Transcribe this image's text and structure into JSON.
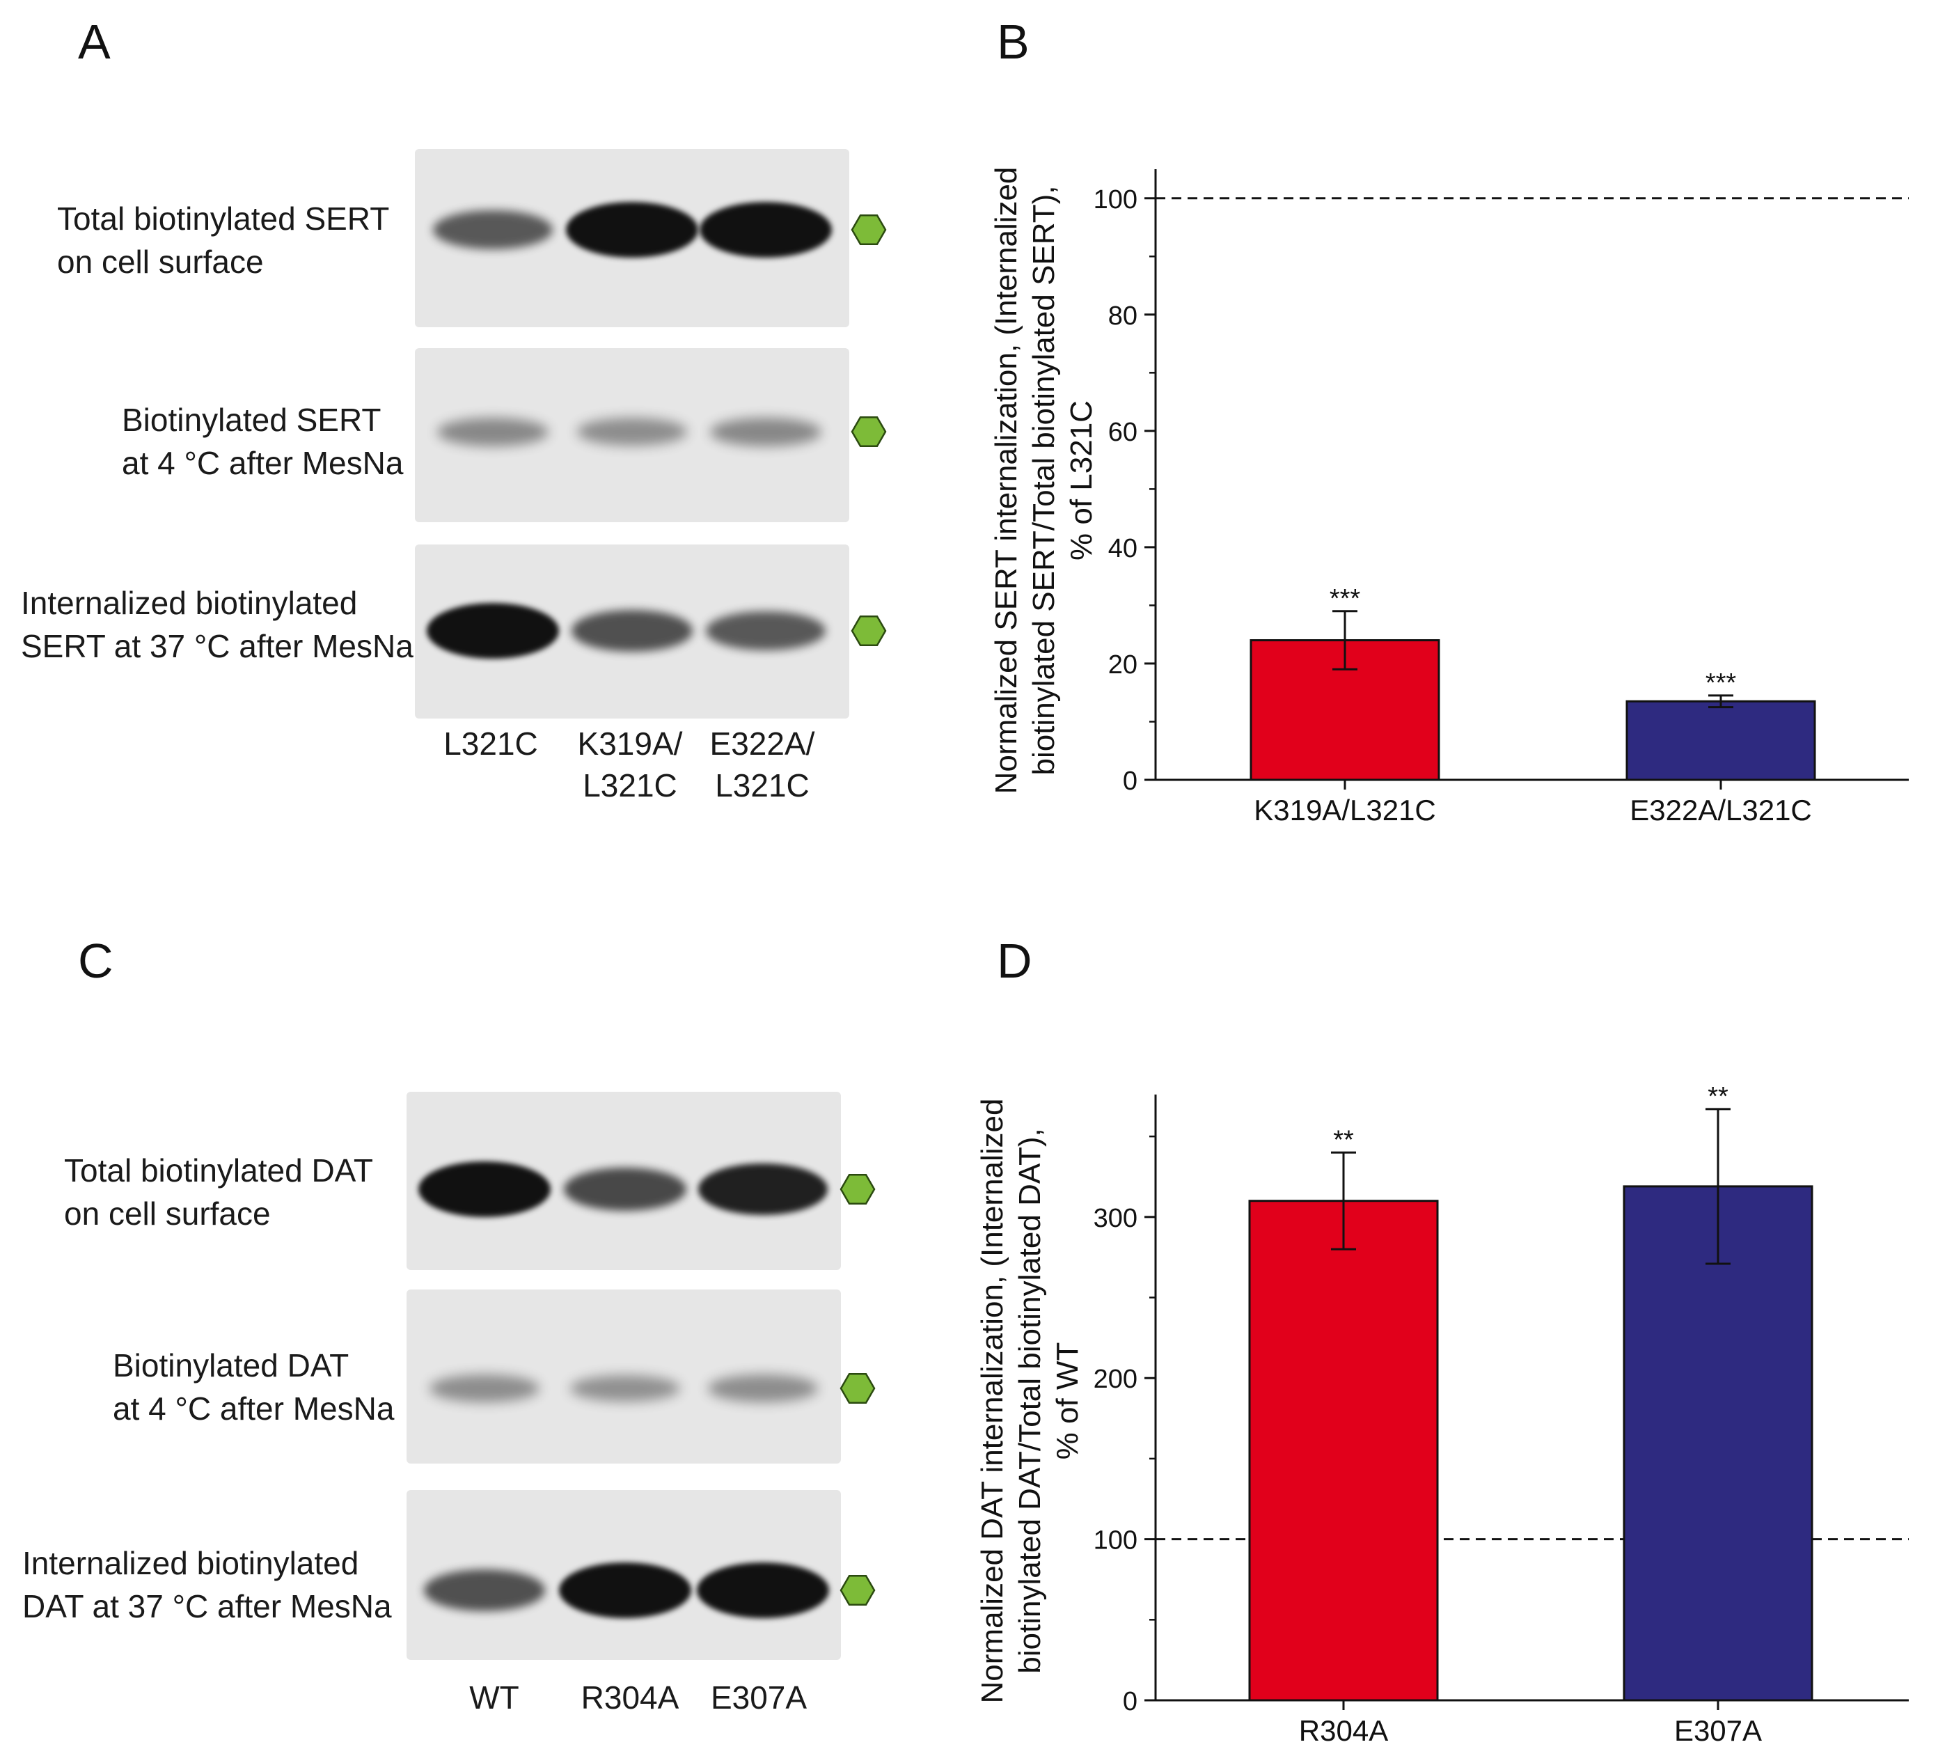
{
  "panels": {
    "A": {
      "letter": "A"
    },
    "B": {
      "letter": "B"
    },
    "C": {
      "letter": "C"
    },
    "D": {
      "letter": "D"
    }
  },
  "blot_A": {
    "rows": [
      {
        "label": "Total biotinylated SERT\non cell surface"
      },
      {
        "label": "Biotinylated SERT\nat 4 °C after MesNa"
      },
      {
        "label": "Internalized biotinylated\nSERT at 37 °C after MesNa"
      }
    ],
    "lanes": [
      {
        "label": "L321C"
      },
      {
        "label": "K319A/\nL321C"
      },
      {
        "label": "E322A/\nL321C"
      }
    ],
    "band_intensity": [
      [
        0.55,
        1.0,
        1.0
      ],
      [
        0.25,
        0.22,
        0.25
      ],
      [
        1.0,
        0.6,
        0.55
      ]
    ]
  },
  "blot_C": {
    "rows": [
      {
        "label": "Total biotinylated DAT\non cell surface"
      },
      {
        "label": "Biotinylated DAT\nat 4 °C after MesNa"
      },
      {
        "label": "Internalized biotinylated\nDAT at 37 °C after MesNa"
      }
    ],
    "lanes": [
      {
        "label": "WT"
      },
      {
        "label": "R304A"
      },
      {
        "label": "E307A"
      }
    ],
    "band_intensity": [
      [
        1.0,
        0.65,
        0.9
      ],
      [
        0.22,
        0.2,
        0.22
      ],
      [
        0.6,
        1.0,
        1.0
      ]
    ]
  },
  "colors": {
    "red": "#e1001b",
    "blue": "#2e2a80",
    "marker": "#7dbb38",
    "marker_edge": "#2b4a10",
    "gel_bg": "#e6e6e6",
    "band": "#111111"
  },
  "chart_data": [
    {
      "panel": "B",
      "type": "bar",
      "categories": [
        "K319A/L321C",
        "E322A/L321C"
      ],
      "values": [
        24,
        13.5
      ],
      "errors": [
        5,
        1
      ],
      "significance": [
        "***",
        "***"
      ],
      "colors": [
        "#e1001b",
        "#2e2a80"
      ],
      "reference_line": 100,
      "ylim": [
        0,
        105
      ],
      "yticks": [
        0,
        20,
        40,
        60,
        80,
        100
      ],
      "title": "",
      "xlabel": "",
      "ylabel_lines": [
        "Normalized SERT internalization, (Internalized",
        "biotinylated SERT/Total biotinylated SERT),",
        "% of L321C"
      ]
    },
    {
      "panel": "D",
      "type": "bar",
      "categories": [
        "R304A",
        "E307A"
      ],
      "values": [
        310,
        319
      ],
      "errors": [
        30,
        48
      ],
      "significance": [
        "**",
        "**"
      ],
      "colors": [
        "#e1001b",
        "#2e2a80"
      ],
      "reference_line": 100,
      "ylim": [
        0,
        376
      ],
      "yticks": [
        0,
        100,
        200,
        300
      ],
      "title": "",
      "xlabel": "",
      "ylabel_lines": [
        "Normalized DAT internalization, (Internalized",
        "biotinylated DAT/Total biotinylated DAT),",
        "% of WT"
      ]
    }
  ]
}
